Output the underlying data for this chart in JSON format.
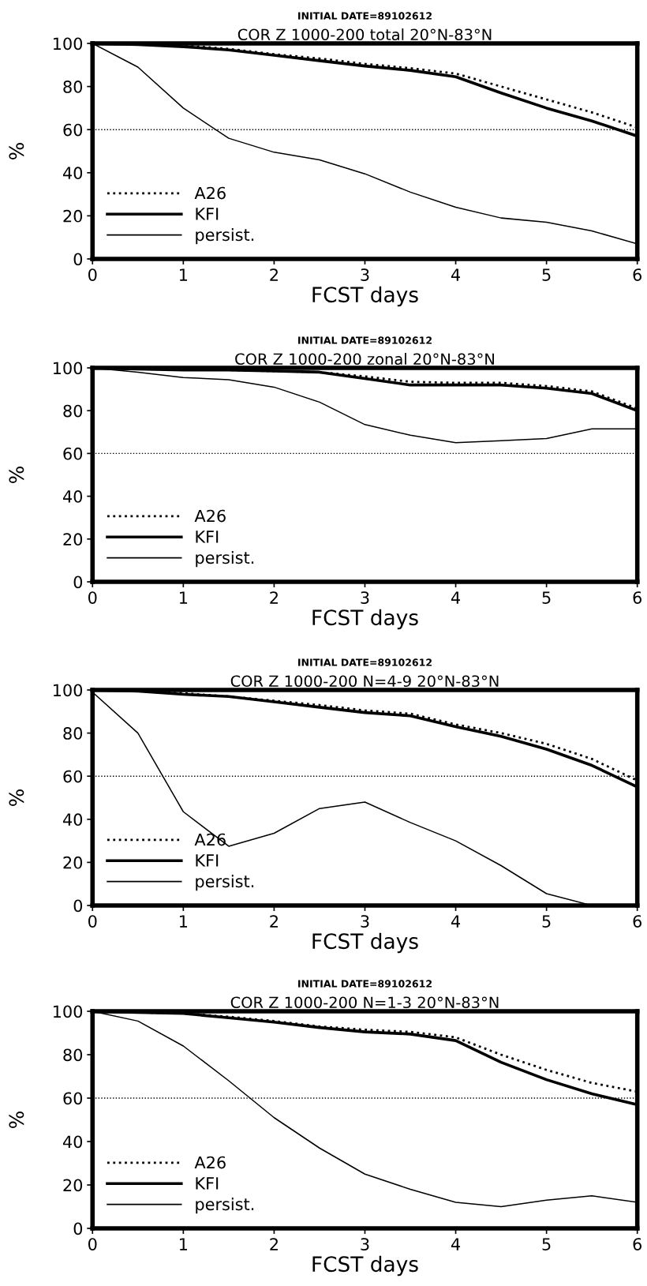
{
  "chart_data": [
    {
      "type": "line",
      "subtitle": "INITIAL DATE=89102612",
      "title": "COR Z 1000-200 total 20°N-83°N",
      "xlabel": "FCST days",
      "ylabel": "%",
      "x": [
        0,
        0.5,
        1,
        1.5,
        2,
        2.5,
        3,
        3.5,
        4,
        4.5,
        5,
        5.5,
        6
      ],
      "series": [
        {
          "name": "A26",
          "color": "#000000",
          "line_style": "dotted",
          "values": [
            100,
            99.5,
            99,
            97.5,
            95,
            93,
            90.5,
            88.5,
            86,
            80,
            74,
            68,
            61
          ]
        },
        {
          "name": "KFI",
          "color": "#000000",
          "line_style": "solid",
          "values": [
            100,
            99.5,
            98.5,
            97,
            94.5,
            92,
            89.5,
            87.5,
            84.5,
            77,
            70,
            64,
            57
          ]
        },
        {
          "name": "persist.",
          "color": "#000000",
          "line_style": "solid",
          "values": [
            100,
            89,
            70,
            56,
            49.5,
            46,
            39.5,
            31,
            24,
            19,
            17,
            13,
            7
          ]
        }
      ],
      "xlim": [
        0,
        6
      ],
      "xticks": [
        0,
        1,
        2,
        3,
        4,
        5,
        6
      ],
      "ylim": [
        0,
        100
      ],
      "yticks": [
        0,
        20,
        40,
        60,
        80,
        100
      ],
      "ref_lines": [
        {
          "axis": "y",
          "value": 60,
          "line_style": "dotted"
        }
      ],
      "grid": false,
      "legend": "bottom left"
    },
    {
      "type": "line",
      "subtitle": "INITIAL DATE=89102612",
      "title": "COR Z 1000-200 zonal 20°N-83°N",
      "xlabel": "FCST days",
      "ylabel": "%",
      "x": [
        0,
        0.5,
        1,
        1.5,
        2,
        2.5,
        3,
        3.5,
        4,
        4.5,
        5,
        5.5,
        6
      ],
      "series": [
        {
          "name": "A26",
          "color": "#000000",
          "line_style": "dotted",
          "values": [
            100,
            99.5,
            99,
            99,
            98.5,
            98,
            96,
            93.5,
            93,
            93,
            91.5,
            89,
            81
          ]
        },
        {
          "name": "KFI",
          "color": "#000000",
          "line_style": "solid",
          "values": [
            100,
            99.5,
            99,
            99,
            98.5,
            98,
            95,
            92,
            92,
            92,
            90.5,
            88,
            80
          ]
        },
        {
          "name": "persist.",
          "color": "#000000",
          "line_style": "solid",
          "values": [
            100,
            98,
            95.5,
            94.5,
            91,
            84,
            73.5,
            68.5,
            65,
            66,
            67,
            71.5,
            71.5
          ]
        }
      ],
      "xlim": [
        0,
        6
      ],
      "xticks": [
        0,
        1,
        2,
        3,
        4,
        5,
        6
      ],
      "ylim": [
        0,
        100
      ],
      "yticks": [
        0,
        20,
        40,
        60,
        80,
        100
      ],
      "ref_lines": [
        {
          "axis": "y",
          "value": 60,
          "line_style": "dotted"
        }
      ],
      "grid": false,
      "legend": "bottom left"
    },
    {
      "type": "line",
      "subtitle": "INITIAL DATE=89102612",
      "title": "COR Z 1000-200 N=4-9 20°N-83°N",
      "xlabel": "FCST days",
      "ylabel": "%",
      "x": [
        0,
        0.5,
        1,
        1.5,
        2,
        2.5,
        3,
        3.5,
        4,
        4.5,
        5,
        5.5,
        6
      ],
      "series": [
        {
          "name": "A26",
          "color": "#000000",
          "line_style": "dotted",
          "values": [
            100,
            99.5,
            98.5,
            97,
            95,
            93,
            90.5,
            89,
            84,
            80,
            75,
            68,
            58
          ]
        },
        {
          "name": "KFI",
          "color": "#000000",
          "line_style": "solid",
          "values": [
            100,
            99.5,
            98,
            97,
            94.5,
            92,
            89.5,
            88,
            83,
            78.5,
            72.5,
            65,
            55
          ]
        },
        {
          "name": "persist.",
          "color": "#000000",
          "line_style": "solid",
          "values": [
            99,
            80,
            43.5,
            27.5,
            33.5,
            45,
            48,
            38.5,
            30,
            18.5,
            5.5,
            0,
            null
          ]
        }
      ],
      "xlim": [
        0,
        6
      ],
      "xticks": [
        0,
        1,
        2,
        3,
        4,
        5,
        6
      ],
      "ylim": [
        0,
        100
      ],
      "yticks": [
        0,
        20,
        40,
        60,
        80,
        100
      ],
      "ref_lines": [
        {
          "axis": "y",
          "value": 60,
          "line_style": "dotted"
        }
      ],
      "grid": false,
      "legend": "bottom left"
    },
    {
      "type": "line",
      "subtitle": "INITIAL DATE=89102612",
      "title": "COR Z 1000-200 N=1-3 20°N-83°N",
      "xlabel": "FCST days",
      "ylabel": "%",
      "x": [
        0,
        0.5,
        1,
        1.5,
        2,
        2.5,
        3,
        3.5,
        4,
        4.5,
        5,
        5.5,
        6
      ],
      "series": [
        {
          "name": "A26",
          "color": "#000000",
          "line_style": "dotted",
          "values": [
            100,
            99.5,
            99,
            97.5,
            95.5,
            93,
            91.5,
            90.5,
            88,
            80,
            73,
            67,
            63
          ]
        },
        {
          "name": "KFI",
          "color": "#000000",
          "line_style": "solid",
          "values": [
            100,
            99.5,
            99,
            97,
            95,
            92.5,
            90.5,
            89.5,
            86.5,
            76.5,
            68.5,
            62,
            57
          ]
        },
        {
          "name": "persist.",
          "color": "#000000",
          "line_style": "solid",
          "values": [
            100,
            95.5,
            84,
            68,
            51,
            37,
            25,
            18,
            12,
            10,
            13,
            15,
            12
          ]
        }
      ],
      "xlim": [
        0,
        6
      ],
      "xticks": [
        0,
        1,
        2,
        3,
        4,
        5,
        6
      ],
      "ylim": [
        0,
        100
      ],
      "yticks": [
        0,
        20,
        40,
        60,
        80,
        100
      ],
      "ref_lines": [
        {
          "axis": "y",
          "value": 60,
          "line_style": "dotted"
        }
      ],
      "grid": false,
      "legend": "bottom left"
    }
  ]
}
